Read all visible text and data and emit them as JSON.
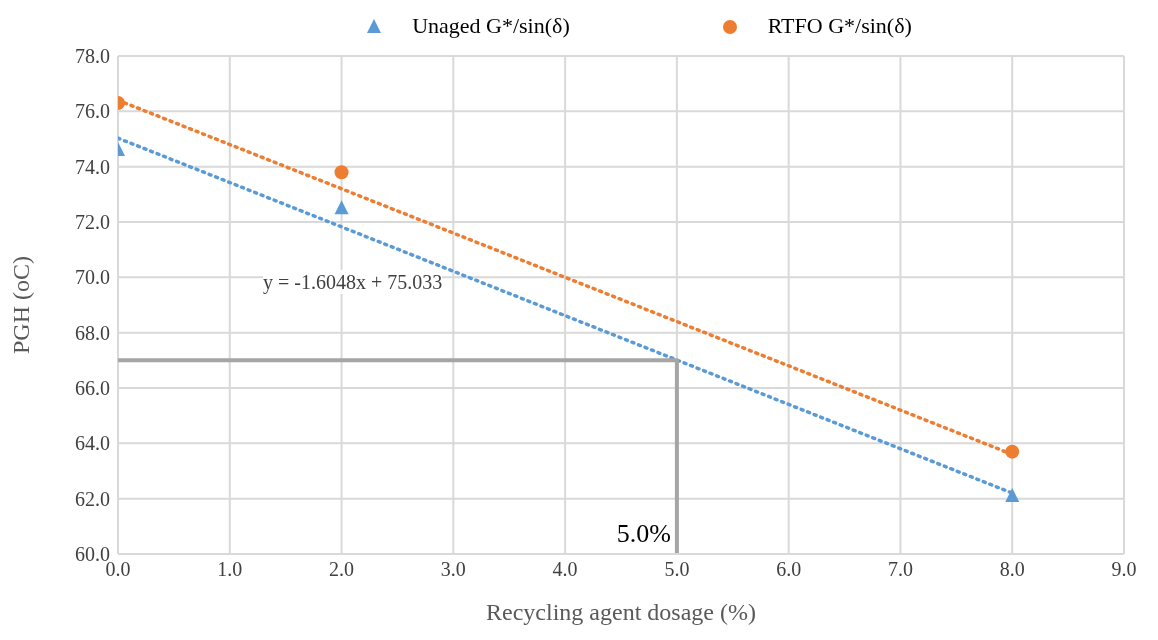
{
  "chart_data": {
    "type": "scatter",
    "xlabel": "Recycling agent dosage (%)",
    "ylabel": "PGH (oC)",
    "xlim": [
      0,
      9
    ],
    "xticks": [
      {
        "value": 0,
        "label": "0.0"
      },
      {
        "value": 1,
        "label": "1.0"
      },
      {
        "value": 2,
        "label": "2.0"
      },
      {
        "value": 3,
        "label": "3.0"
      },
      {
        "value": 4,
        "label": "4.0"
      },
      {
        "value": 5,
        "label": "5.0"
      },
      {
        "value": 6,
        "label": "6.0"
      },
      {
        "value": 7,
        "label": "7.0"
      },
      {
        "value": 8,
        "label": "8.0"
      },
      {
        "value": 9,
        "label": "9.0"
      }
    ],
    "ylim": [
      60,
      78
    ],
    "yticks": [
      {
        "value": 60,
        "label": "60.0"
      },
      {
        "value": 62,
        "label": "62.0"
      },
      {
        "value": 64,
        "label": "64.0"
      },
      {
        "value": 66,
        "label": "66.0"
      },
      {
        "value": 68,
        "label": "68.0"
      },
      {
        "value": 70,
        "label": "70.0"
      },
      {
        "value": 72,
        "label": "72.0"
      },
      {
        "value": 74,
        "label": "74.0"
      },
      {
        "value": 76,
        "label": "76.0"
      },
      {
        "value": 78,
        "label": "78.0"
      }
    ],
    "grid": true,
    "legend": "top",
    "series": [
      {
        "name": "Unaged G*/sin(δ)",
        "marker": "triangle",
        "color": "#5b9bd5",
        "x": [
          0,
          2,
          8
        ],
        "values": [
          74.6,
          72.5,
          62.1
        ]
      },
      {
        "name": "RTFO G*/sin(δ)",
        "marker": "circle",
        "color": "#ed7d31",
        "x": [
          0,
          2,
          8
        ],
        "values": [
          76.3,
          73.8,
          63.7
        ]
      },
      {
        "type": "line",
        "line_style": "dotted",
        "color": "#5b9bd5",
        "x": [
          0,
          8
        ],
        "values": [
          75.03,
          62.2
        ]
      },
      {
        "type": "line",
        "line_style": "dotted",
        "color": "#ed7d31",
        "x": [
          0,
          8
        ],
        "values": [
          76.4,
          63.6
        ]
      },
      {
        "type": "line",
        "line_style": "solid",
        "color": "#a5a5a5",
        "x": [
          0,
          5,
          5
        ],
        "values": [
          67,
          67,
          60
        ]
      }
    ],
    "annotations": [
      "y = -1.6048x + 75.033",
      {
        "text": "5.0%",
        "x": 5,
        "y": 60
      }
    ]
  }
}
